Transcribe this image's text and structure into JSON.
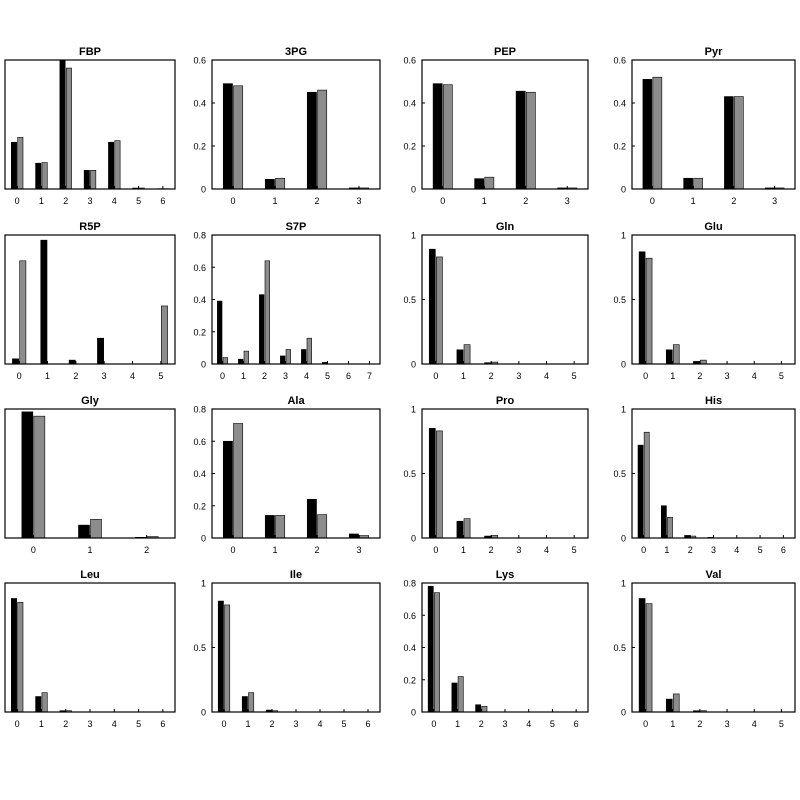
{
  "colors": {
    "series_a": "#000000",
    "series_b": "#8c8c8c",
    "axis": "#000000"
  },
  "chart_data": [
    {
      "type": "bar",
      "title": "FBP",
      "categories": [
        "0",
        "1",
        "2",
        "3",
        "4",
        "5",
        "6"
      ],
      "ylim": [
        0,
        0.4
      ],
      "yticks": [],
      "series": [
        {
          "values": [
            0.145,
            0.08,
            0.4,
            0.058,
            0.145,
            0.003,
            0.001
          ]
        },
        {
          "values": [
            0.16,
            0.082,
            0.375,
            0.058,
            0.15,
            0.003,
            0.001
          ]
        }
      ]
    },
    {
      "type": "bar",
      "title": "3PG",
      "categories": [
        "0",
        "1",
        "2",
        "3"
      ],
      "ylim": [
        0,
        0.6
      ],
      "yticks": [
        "0",
        "0.2",
        "0.4",
        "0.6"
      ],
      "series": [
        {
          "values": [
            0.49,
            0.045,
            0.45,
            0.005
          ]
        },
        {
          "values": [
            0.48,
            0.05,
            0.46,
            0.005
          ]
        }
      ]
    },
    {
      "type": "bar",
      "title": "PEP",
      "categories": [
        "0",
        "1",
        "2",
        "3"
      ],
      "ylim": [
        0,
        0.6
      ],
      "yticks": [
        "0",
        "0.2",
        "0.4",
        "0.6"
      ],
      "series": [
        {
          "values": [
            0.49,
            0.048,
            0.455,
            0.005
          ]
        },
        {
          "values": [
            0.485,
            0.055,
            0.45,
            0.005
          ]
        }
      ]
    },
    {
      "type": "bar",
      "title": "Pyr",
      "categories": [
        "0",
        "1",
        "2",
        "3"
      ],
      "ylim": [
        0,
        0.6
      ],
      "yticks": [
        "0",
        "0.2",
        "0.4",
        "0.6"
      ],
      "series": [
        {
          "values": [
            0.51,
            0.05,
            0.43,
            0.005
          ]
        },
        {
          "values": [
            0.52,
            0.05,
            0.43,
            0.005
          ]
        }
      ]
    },
    {
      "type": "bar",
      "title": "R5P",
      "categories": [
        "0",
        "1",
        "2",
        "3",
        "4",
        "5"
      ],
      "ylim": [
        0,
        0.5
      ],
      "yticks": [],
      "series": [
        {
          "values": [
            0.02,
            0.48,
            0.015,
            0.1,
            0.0,
            0.0
          ]
        },
        {
          "values": [
            0.4,
            0.0,
            0.0,
            0.0,
            0.0,
            0.225
          ]
        }
      ]
    },
    {
      "type": "bar",
      "title": "S7P",
      "categories": [
        "0",
        "1",
        "2",
        "3",
        "4",
        "5",
        "6",
        "7"
      ],
      "ylim": [
        0,
        0.8
      ],
      "yticks": [
        "0",
        "0.2",
        "0.4",
        "0.6",
        "0.8"
      ],
      "series": [
        {
          "values": [
            0.39,
            0.03,
            0.43,
            0.05,
            0.09,
            0.01,
            0.0,
            0.0
          ]
        },
        {
          "values": [
            0.04,
            0.08,
            0.64,
            0.09,
            0.16,
            0.0,
            0.0,
            0.0
          ]
        }
      ]
    },
    {
      "type": "bar",
      "title": "Gln",
      "categories": [
        "0",
        "1",
        "2",
        "3",
        "4",
        "5"
      ],
      "ylim": [
        0,
        1
      ],
      "yticks": [
        "0",
        "0.5",
        "1"
      ],
      "series": [
        {
          "values": [
            0.89,
            0.11,
            0.01,
            0.0,
            0.0,
            0.0
          ]
        },
        {
          "values": [
            0.83,
            0.15,
            0.015,
            0.0,
            0.0,
            0.0
          ]
        }
      ]
    },
    {
      "type": "bar",
      "title": "Glu",
      "categories": [
        "0",
        "1",
        "2",
        "3",
        "4",
        "5"
      ],
      "ylim": [
        0,
        1
      ],
      "yticks": [
        "0",
        "0.5",
        "1"
      ],
      "series": [
        {
          "values": [
            0.87,
            0.11,
            0.02,
            0.0,
            0.0,
            0.0
          ]
        },
        {
          "values": [
            0.82,
            0.15,
            0.03,
            0.0,
            0.0,
            0.0
          ]
        }
      ]
    },
    {
      "type": "bar",
      "title": "Gly",
      "categories": [
        "0",
        "1",
        "2"
      ],
      "ylim": [
        0,
        0.9
      ],
      "yticks": [],
      "series": [
        {
          "values": [
            0.88,
            0.09,
            0.005
          ]
        },
        {
          "values": [
            0.85,
            0.13,
            0.01
          ]
        }
      ]
    },
    {
      "type": "bar",
      "title": "Ala",
      "categories": [
        "0",
        "1",
        "2",
        "3"
      ],
      "ylim": [
        0,
        0.8
      ],
      "yticks": [
        "0",
        "0.2",
        "0.4",
        "0.6",
        "0.8"
      ],
      "series": [
        {
          "values": [
            0.6,
            0.14,
            0.24,
            0.025
          ]
        },
        {
          "values": [
            0.71,
            0.14,
            0.145,
            0.015
          ]
        }
      ]
    },
    {
      "type": "bar",
      "title": "Pro",
      "categories": [
        "0",
        "1",
        "2",
        "3",
        "4",
        "5"
      ],
      "ylim": [
        0,
        1
      ],
      "yticks": [
        "0",
        "0.5",
        "1"
      ],
      "series": [
        {
          "values": [
            0.85,
            0.13,
            0.015,
            0.0,
            0.0,
            0.0
          ]
        },
        {
          "values": [
            0.83,
            0.15,
            0.02,
            0.0,
            0.0,
            0.0
          ]
        }
      ]
    },
    {
      "type": "bar",
      "title": "His",
      "categories": [
        "0",
        "1",
        "2",
        "3",
        "4",
        "5",
        "6"
      ],
      "ylim": [
        0,
        1
      ],
      "yticks": [
        "0",
        "0.5",
        "1"
      ],
      "series": [
        {
          "values": [
            0.72,
            0.25,
            0.02,
            0.005,
            0.0,
            0.0,
            0.0
          ]
        },
        {
          "values": [
            0.82,
            0.16,
            0.015,
            0.0,
            0.0,
            0.0,
            0.0
          ]
        }
      ]
    },
    {
      "type": "bar",
      "title": "Leu",
      "categories": [
        "0",
        "1",
        "2",
        "3",
        "4",
        "5",
        "6"
      ],
      "ylim": [
        0,
        1
      ],
      "yticks": [],
      "series": [
        {
          "values": [
            0.88,
            0.12,
            0.01,
            0.0,
            0.0,
            0.0,
            0.0
          ]
        },
        {
          "values": [
            0.85,
            0.15,
            0.01,
            0.0,
            0.0,
            0.0,
            0.0
          ]
        }
      ]
    },
    {
      "type": "bar",
      "title": "Ile",
      "categories": [
        "0",
        "1",
        "2",
        "3",
        "4",
        "5",
        "6"
      ],
      "ylim": [
        0,
        1
      ],
      "yticks": [
        "0",
        "0.5",
        "1"
      ],
      "series": [
        {
          "values": [
            0.86,
            0.12,
            0.015,
            0.0,
            0.0,
            0.0,
            0.0
          ]
        },
        {
          "values": [
            0.83,
            0.15,
            0.01,
            0.0,
            0.0,
            0.0,
            0.0
          ]
        }
      ]
    },
    {
      "type": "bar",
      "title": "Lys",
      "categories": [
        "0",
        "1",
        "2",
        "3",
        "4",
        "5",
        "6"
      ],
      "ylim": [
        0,
        0.8
      ],
      "yticks": [
        "0",
        "0.2",
        "0.4",
        "0.6",
        "0.8"
      ],
      "series": [
        {
          "values": [
            0.78,
            0.18,
            0.045,
            0.0,
            0.0,
            0.0,
            0.0
          ]
        },
        {
          "values": [
            0.74,
            0.22,
            0.035,
            0.0,
            0.0,
            0.0,
            0.0
          ]
        }
      ]
    },
    {
      "type": "bar",
      "title": "Val",
      "categories": [
        "0",
        "1",
        "2",
        "3",
        "4",
        "5"
      ],
      "ylim": [
        0,
        1
      ],
      "yticks": [
        "0",
        "0.5",
        "1"
      ],
      "series": [
        {
          "values": [
            0.88,
            0.1,
            0.01,
            0.0,
            0.0,
            0.0
          ]
        },
        {
          "values": [
            0.84,
            0.14,
            0.01,
            0.0,
            0.0,
            0.0
          ]
        }
      ]
    }
  ]
}
